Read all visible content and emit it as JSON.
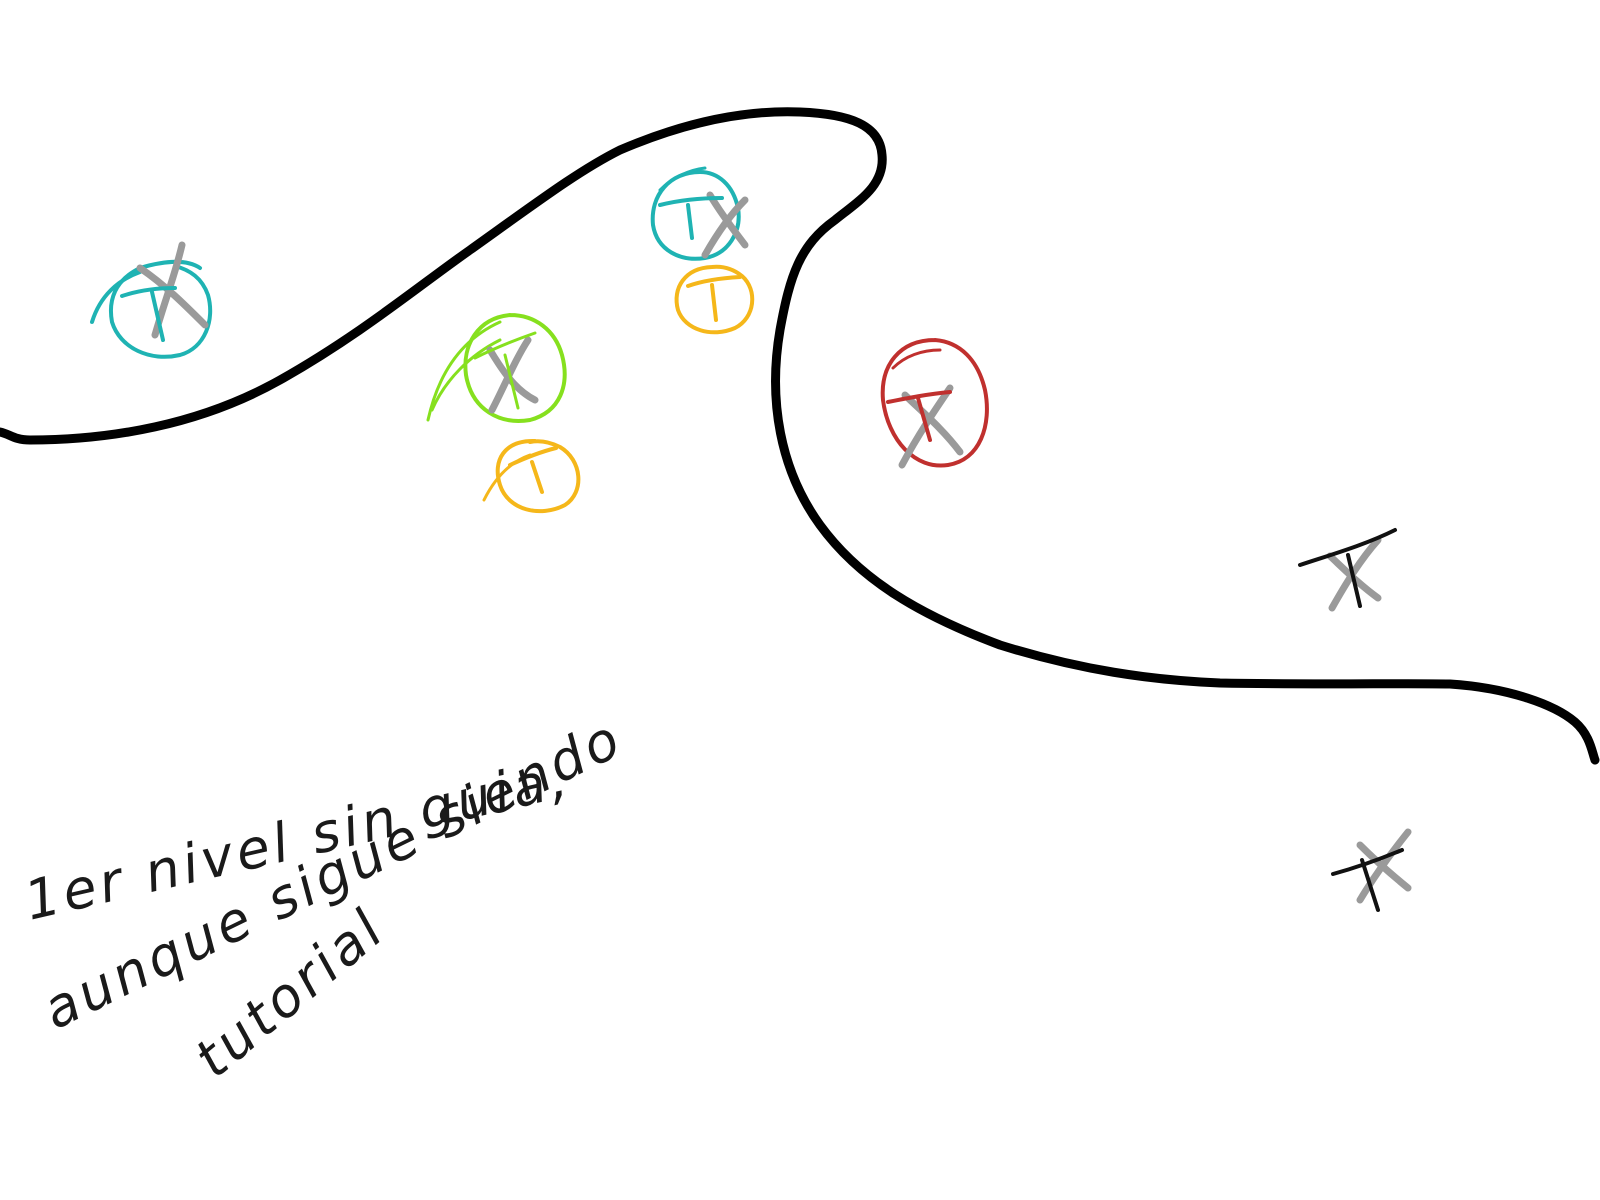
{
  "colors": {
    "ink": "#000000",
    "grey": "#9a9a9a",
    "teal": "#1fb3b3",
    "lime": "#86e01e",
    "amber": "#f5b71a",
    "red": "#c0302e"
  },
  "markers": [
    {
      "id": "marker-teal-left",
      "color": "teal",
      "circle": true,
      "crossed": true
    },
    {
      "id": "marker-green",
      "color": "lime",
      "circle": true,
      "crossed": true
    },
    {
      "id": "marker-amber-lower",
      "color": "amber",
      "circle": true,
      "crossed": false
    },
    {
      "id": "marker-teal-top",
      "color": "teal",
      "circle": true,
      "crossed": true
    },
    {
      "id": "marker-amber-top",
      "color": "amber",
      "circle": true,
      "crossed": false
    },
    {
      "id": "marker-red",
      "color": "red",
      "circle": true,
      "crossed": true
    },
    {
      "id": "marker-black-upper",
      "color": "ink",
      "circle": false,
      "crossed": true
    },
    {
      "id": "marker-black-lower",
      "color": "ink",
      "circle": false,
      "crossed": true
    }
  ],
  "note": {
    "line1": "1er nivel sin guia,",
    "line2": "aunque sigue siendo",
    "line3": "tutorial"
  }
}
